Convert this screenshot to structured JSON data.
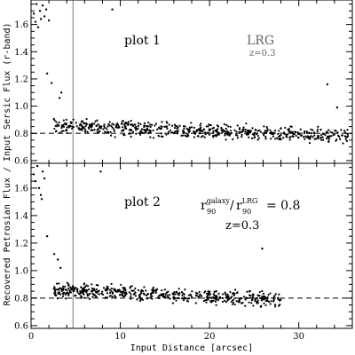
{
  "figure": {
    "xlabel": "Input Distance [arcsec]",
    "ylabel": "Recovered Petrosian Flux / Input Sersic Flux (r-band)"
  },
  "chart_data": [
    {
      "type": "scatter",
      "panel": "plot 1",
      "title": "plot 1",
      "annotations": [
        "LRG",
        "z=0.3"
      ],
      "xlabel": "Input Distance [arcsec]",
      "ylabel": "Recovered Petrosian Flux / Input Sersic Flux (r-band)",
      "xlim": [
        0,
        36
      ],
      "ylim": [
        0.58,
        1.78
      ],
      "xticks": [
        0,
        10,
        20,
        30
      ],
      "yticks": [
        0.6,
        0.8,
        1.0,
        1.2,
        1.4,
        1.6
      ],
      "xtick_labels": [
        "0",
        "10",
        "20",
        "30"
      ],
      "ytick_labels": [
        "0.6",
        "0.8",
        "1.0",
        "1.2",
        "1.4",
        "1.6"
      ],
      "reference_hline": 0.8,
      "reference_vline": 4.7,
      "outliers": [
        {
          "x": 0.3,
          "y": 1.68
        },
        {
          "x": 0.5,
          "y": 1.62
        },
        {
          "x": 0.6,
          "y": 1.75
        },
        {
          "x": 0.8,
          "y": 1.58
        },
        {
          "x": 1.0,
          "y": 1.7
        },
        {
          "x": 1.1,
          "y": 1.64
        },
        {
          "x": 1.3,
          "y": 1.74
        },
        {
          "x": 1.5,
          "y": 1.66
        },
        {
          "x": 1.7,
          "y": 1.71
        },
        {
          "x": 2.0,
          "y": 1.63
        },
        {
          "x": 1.8,
          "y": 1.24
        },
        {
          "x": 2.3,
          "y": 1.17
        },
        {
          "x": 3.2,
          "y": 1.06
        },
        {
          "x": 3.4,
          "y": 1.1
        },
        {
          "x": 9.1,
          "y": 1.71
        },
        {
          "x": 33.2,
          "y": 1.16
        },
        {
          "x": 34.3,
          "y": 0.99
        }
      ],
      "scatter_band": {
        "x_range": [
          2.5,
          35.5
        ],
        "center_start": 0.86,
        "center_end": 0.78,
        "spread": 0.05,
        "point_count": 620
      }
    },
    {
      "type": "scatter",
      "panel": "plot 2",
      "title": "plot 2",
      "annotations": [
        {
          "base": "r",
          "sup": "galaxy",
          "sub": "90"
        },
        "/",
        {
          "base": "r",
          "sup": "LRG",
          "sub": "90"
        },
        "= 0.8",
        "z=0.3"
      ],
      "xlabel": "Input Distance [arcsec]",
      "ylabel": "Recovered Petrosian Flux / Input Sersic Flux (r-band)",
      "xlim": [
        0,
        36
      ],
      "ylim": [
        0.58,
        1.78
      ],
      "xticks": [
        0,
        10,
        20,
        30
      ],
      "yticks": [
        0.6,
        0.8,
        1.0,
        1.2,
        1.4,
        1.6
      ],
      "xtick_labels": [
        "0",
        "10",
        "20",
        "30"
      ],
      "ytick_labels": [
        "0.6",
        "0.8",
        "1.0",
        "1.2",
        "1.4",
        "1.6"
      ],
      "reference_hline": 0.8,
      "reference_vline": 4.7,
      "outliers": [
        {
          "x": 0.3,
          "y": 1.7
        },
        {
          "x": 0.5,
          "y": 1.65
        },
        {
          "x": 0.7,
          "y": 1.76
        },
        {
          "x": 0.9,
          "y": 1.6
        },
        {
          "x": 1.1,
          "y": 1.55
        },
        {
          "x": 1.3,
          "y": 1.72
        },
        {
          "x": 1.5,
          "y": 1.67
        },
        {
          "x": 1.2,
          "y": 1.52
        },
        {
          "x": 1.8,
          "y": 1.25
        },
        {
          "x": 2.6,
          "y": 1.12
        },
        {
          "x": 3.0,
          "y": 1.08
        },
        {
          "x": 3.3,
          "y": 1.02
        },
        {
          "x": 7.8,
          "y": 1.72
        },
        {
          "x": 25.9,
          "y": 1.16
        }
      ],
      "scatter_band": {
        "x_range": [
          2.5,
          28.0
        ],
        "center_start": 0.86,
        "center_end": 0.79,
        "spread": 0.05,
        "point_count": 520
      }
    }
  ]
}
